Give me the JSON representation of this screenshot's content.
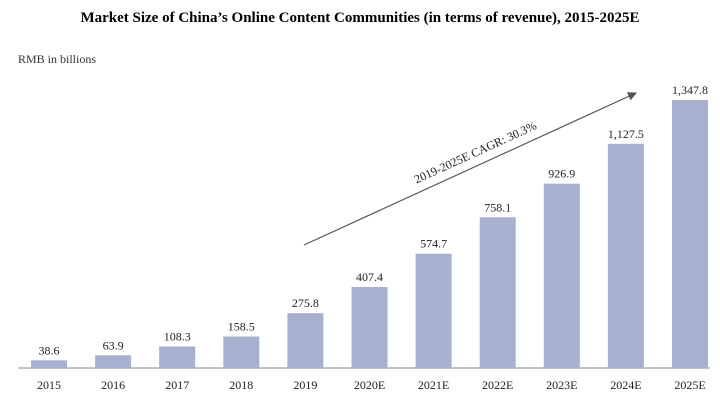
{
  "chart_data": {
    "type": "bar",
    "title": "Market Size of China’s Online Content Communities (in terms of revenue), 2015-2025E",
    "ylabel": "RMB in billions",
    "categories": [
      "2015",
      "2016",
      "2017",
      "2018",
      "2019",
      "2020E",
      "2021E",
      "2022E",
      "2023E",
      "2024E",
      "2025E"
    ],
    "values": [
      38.6,
      63.9,
      108.3,
      158.5,
      275.8,
      407.4,
      574.7,
      758.1,
      926.9,
      1127.5,
      1347.8
    ],
    "value_labels": [
      "38.6",
      "63.9",
      "108.3",
      "158.5",
      "275.8",
      "407.4",
      "574.7",
      "758.1",
      "926.9",
      "1,127.5",
      "1,347.8"
    ],
    "annotation": "2019-2025E CAGR: 30.3%",
    "ylim": [
      0,
      1400
    ],
    "grid": false,
    "legend": "none",
    "bar_color": "#a7b0cf"
  }
}
